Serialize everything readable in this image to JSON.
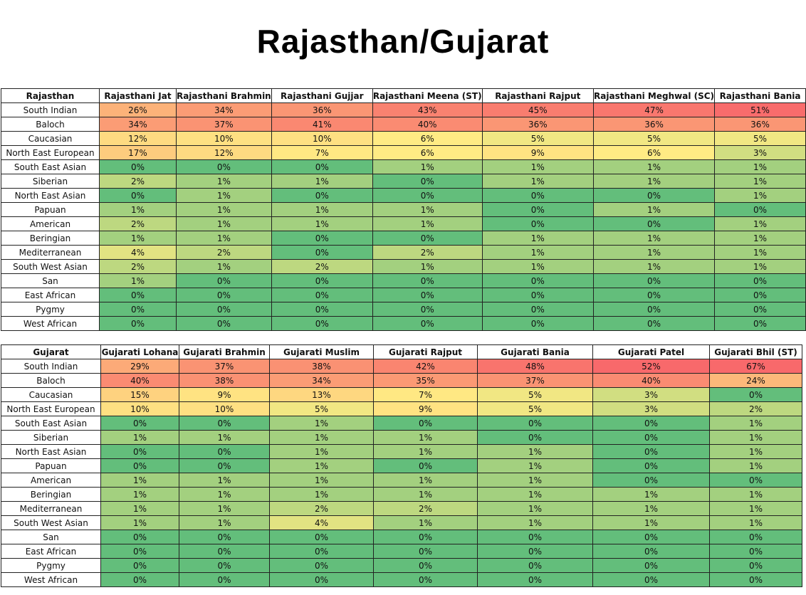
{
  "title": "Rajasthan/Gujarat",
  "chart_data": [
    {
      "type": "table",
      "row_header": "Rajasthan",
      "columns": [
        "Rajasthani Jat",
        "Rajasthani Brahmin",
        "Rajasthani Gujjar",
        "Rajasthani Meena (ST)",
        "Rajasthani Rajput",
        "Rajasthani Meghwal (SC)",
        "Rajasthani Bania"
      ],
      "rows": [
        {
          "label": "South Indian",
          "values": [
            "26%",
            "34%",
            "36%",
            "43%",
            "45%",
            "47%",
            "51%"
          ]
        },
        {
          "label": "Baloch",
          "values": [
            "34%",
            "37%",
            "41%",
            "40%",
            "36%",
            "36%",
            "36%"
          ]
        },
        {
          "label": "Caucasian",
          "values": [
            "12%",
            "10%",
            "10%",
            "6%",
            "5%",
            "5%",
            "5%"
          ]
        },
        {
          "label": "North East European",
          "values": [
            "17%",
            "12%",
            "7%",
            "6%",
            "9%",
            "6%",
            "3%"
          ]
        },
        {
          "label": "South East Asian",
          "values": [
            "0%",
            "0%",
            "0%",
            "1%",
            "1%",
            "1%",
            "1%"
          ]
        },
        {
          "label": "Siberian",
          "values": [
            "2%",
            "1%",
            "1%",
            "0%",
            "1%",
            "1%",
            "1%"
          ]
        },
        {
          "label": "North East Asian",
          "values": [
            "0%",
            "1%",
            "0%",
            "0%",
            "0%",
            "0%",
            "1%"
          ]
        },
        {
          "label": "Papuan",
          "values": [
            "1%",
            "1%",
            "1%",
            "1%",
            "0%",
            "1%",
            "0%"
          ]
        },
        {
          "label": "American",
          "values": [
            "2%",
            "1%",
            "1%",
            "1%",
            "0%",
            "0%",
            "1%"
          ]
        },
        {
          "label": "Beringian",
          "values": [
            "1%",
            "1%",
            "0%",
            "0%",
            "1%",
            "1%",
            "1%"
          ]
        },
        {
          "label": "Mediterranean",
          "values": [
            "4%",
            "2%",
            "0%",
            "2%",
            "1%",
            "1%",
            "1%"
          ]
        },
        {
          "label": "South West Asian",
          "values": [
            "2%",
            "1%",
            "2%",
            "1%",
            "1%",
            "1%",
            "1%"
          ]
        },
        {
          "label": "San",
          "values": [
            "1%",
            "0%",
            "0%",
            "0%",
            "0%",
            "0%",
            "0%"
          ]
        },
        {
          "label": "East African",
          "values": [
            "0%",
            "0%",
            "0%",
            "0%",
            "0%",
            "0%",
            "0%"
          ]
        },
        {
          "label": "Pygmy",
          "values": [
            "0%",
            "0%",
            "0%",
            "0%",
            "0%",
            "0%",
            "0%"
          ]
        },
        {
          "label": "West African",
          "values": [
            "0%",
            "0%",
            "0%",
            "0%",
            "0%",
            "0%",
            "0%"
          ]
        }
      ]
    },
    {
      "type": "table",
      "row_header": "Gujarat",
      "columns": [
        "Gujarati Lohana",
        "Gujarati Brahmin",
        "Gujarati Muslim",
        "Gujarati Rajput",
        "Gujarati Bania",
        "Gujarati Patel",
        "Gujarati Bhil (ST)"
      ],
      "rows": [
        {
          "label": "South Indian",
          "values": [
            "29%",
            "37%",
            "38%",
            "42%",
            "48%",
            "52%",
            "67%"
          ]
        },
        {
          "label": "Baloch",
          "values": [
            "40%",
            "38%",
            "34%",
            "35%",
            "37%",
            "40%",
            "24%"
          ]
        },
        {
          "label": "Caucasian",
          "values": [
            "15%",
            "9%",
            "13%",
            "7%",
            "5%",
            "3%",
            "0%"
          ]
        },
        {
          "label": "North East European",
          "values": [
            "10%",
            "10%",
            "5%",
            "9%",
            "5%",
            "3%",
            "2%"
          ]
        },
        {
          "label": "South East Asian",
          "values": [
            "0%",
            "0%",
            "1%",
            "0%",
            "0%",
            "0%",
            "1%"
          ]
        },
        {
          "label": "Siberian",
          "values": [
            "1%",
            "1%",
            "1%",
            "1%",
            "0%",
            "0%",
            "1%"
          ]
        },
        {
          "label": "North East Asian",
          "values": [
            "0%",
            "0%",
            "1%",
            "1%",
            "1%",
            "0%",
            "1%"
          ]
        },
        {
          "label": "Papuan",
          "values": [
            "0%",
            "0%",
            "1%",
            "0%",
            "1%",
            "0%",
            "1%"
          ]
        },
        {
          "label": "American",
          "values": [
            "1%",
            "1%",
            "1%",
            "1%",
            "1%",
            "0%",
            "0%"
          ]
        },
        {
          "label": "Beringian",
          "values": [
            "1%",
            "1%",
            "1%",
            "1%",
            "1%",
            "1%",
            "1%"
          ]
        },
        {
          "label": "Mediterranean",
          "values": [
            "1%",
            "1%",
            "2%",
            "2%",
            "1%",
            "1%",
            "1%"
          ]
        },
        {
          "label": "South West Asian",
          "values": [
            "1%",
            "1%",
            "4%",
            "1%",
            "1%",
            "1%",
            "1%"
          ]
        },
        {
          "label": "San",
          "values": [
            "0%",
            "0%",
            "0%",
            "0%",
            "0%",
            "0%",
            "0%"
          ]
        },
        {
          "label": "East African",
          "values": [
            "0%",
            "0%",
            "0%",
            "0%",
            "0%",
            "0%",
            "0%"
          ]
        },
        {
          "label": "Pygmy",
          "values": [
            "0%",
            "0%",
            "0%",
            "0%",
            "0%",
            "0%",
            "0%"
          ]
        },
        {
          "label": "West African",
          "values": [
            "0%",
            "0%",
            "0%",
            "0%",
            "0%",
            "0%",
            "0%"
          ]
        }
      ]
    }
  ]
}
